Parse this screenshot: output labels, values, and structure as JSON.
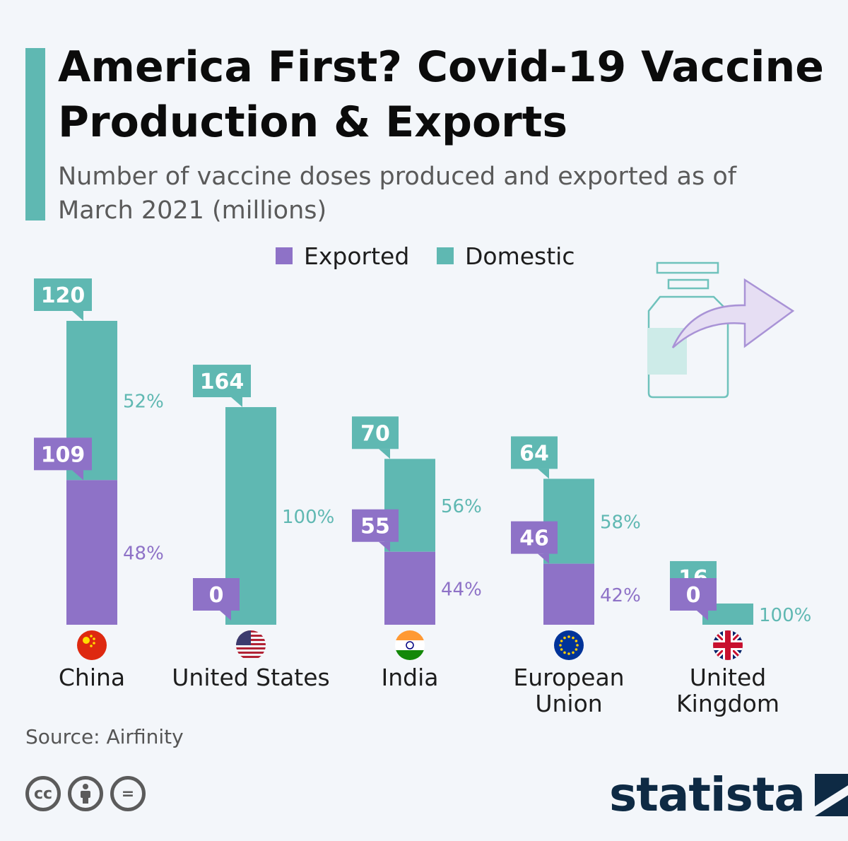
{
  "header": {
    "title": "America First? Covid-19 Vaccine Production & Exports",
    "subtitle": "Number of vaccine doses produced and exported as of March 2021 (millions)"
  },
  "legend": {
    "exported_label": "Exported",
    "domestic_label": "Domestic"
  },
  "colors": {
    "exported": "#8e72c7",
    "domestic": "#5fb8b2",
    "accent": "#5fb8b2",
    "brand": "#0e2a44"
  },
  "chart_data": {
    "type": "bar",
    "stacked": true,
    "categories": [
      "China",
      "United States",
      "India",
      "European Union",
      "United Kingdom"
    ],
    "series": [
      {
        "name": "Exported",
        "values": [
          109,
          0,
          55,
          46,
          0
        ],
        "share_labels": [
          "48%",
          "",
          "44%",
          "42%",
          ""
        ]
      },
      {
        "name": "Domestic",
        "values": [
          120,
          164,
          70,
          64,
          16
        ],
        "share_labels": [
          "52%",
          "100%",
          "56%",
          "58%",
          "100%"
        ]
      }
    ],
    "flag_icons": [
      "china-flag-icon",
      "us-flag-icon",
      "india-flag-icon",
      "eu-flag-icon",
      "uk-flag-icon"
    ],
    "legend_position": "top",
    "grid": false
  },
  "footer": {
    "source": "Source: Airfinity",
    "brand": "statista",
    "license_icons": [
      "cc-icon",
      "attribution-icon",
      "no-derivatives-icon"
    ],
    "license_text": [
      "cc",
      "",
      "="
    ]
  }
}
